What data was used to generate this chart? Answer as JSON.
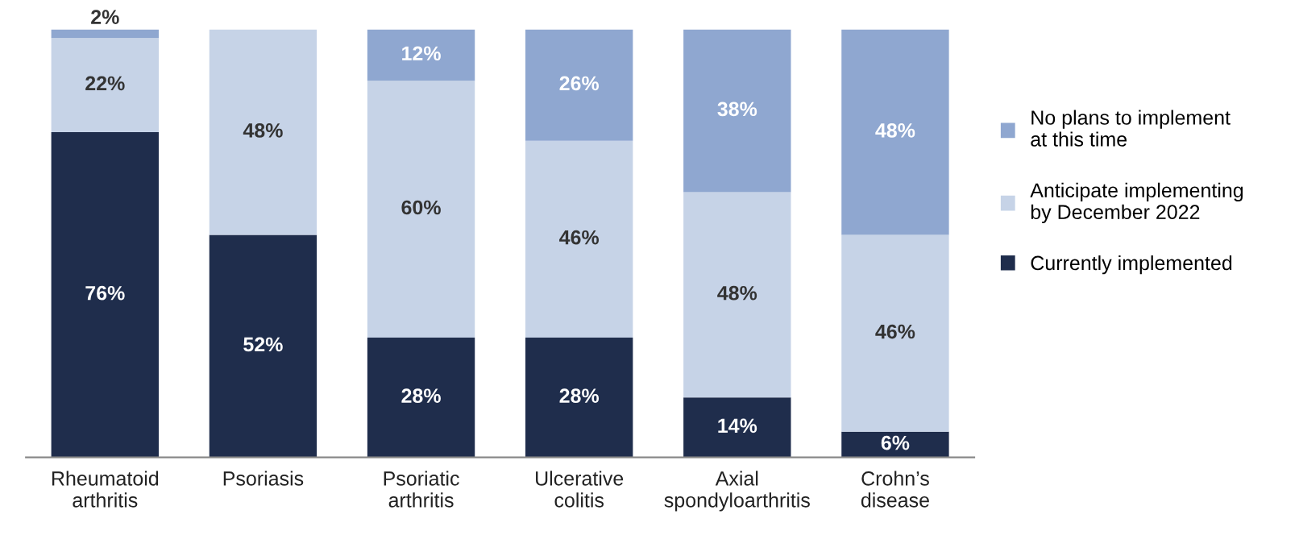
{
  "chart_data": {
    "type": "bar",
    "stacked": true,
    "categories": [
      "Rheumatoid\narthritis",
      "Psoriasis",
      "Psoriatic\narthritis",
      "Ulcerative\ncolitis",
      "Axial\nspondyloarthritis",
      "Crohn’s\ndisease"
    ],
    "series": [
      {
        "name": "Currently implemented",
        "color": "#1f2d4c",
        "values": [
          76,
          52,
          28,
          28,
          14,
          6
        ],
        "value_labels": [
          "76%",
          "52%",
          "28%",
          "28%",
          "14%",
          "6%"
        ]
      },
      {
        "name": "Anticipate implementing\nby December 2022",
        "color": "#c6d3e7",
        "values": [
          22,
          48,
          60,
          46,
          48,
          46
        ],
        "value_labels": [
          "22%",
          "48%",
          "60%",
          "46%",
          "48%",
          "46%"
        ]
      },
      {
        "name": "No plans to implement\nat this time",
        "color": "#8fa7d0",
        "values": [
          2,
          0,
          12,
          26,
          38,
          48
        ],
        "value_labels": [
          "2%",
          null,
          "12%",
          "26%",
          "38%",
          "48%"
        ]
      }
    ],
    "ylim": [
      0,
      100
    ],
    "tick_labels": "x",
    "legend": "right",
    "grid": false
  }
}
